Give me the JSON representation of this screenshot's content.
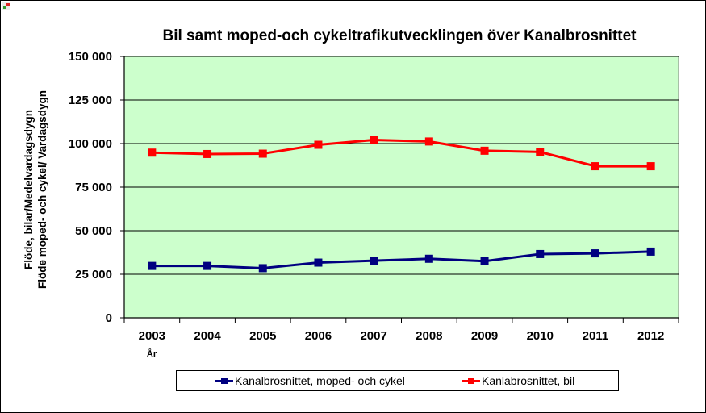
{
  "chart_data": {
    "type": "line",
    "title": "Bil samt moped-och cykeltrafikutvecklingen över Kanalbrosnittet",
    "xlabel": "År",
    "ylabel_lines": [
      "Flöde, bilar/Medelvardagsdygn",
      "Flöde moped- och cykel/ Vardagsdygn"
    ],
    "categories": [
      "2003",
      "2004",
      "2005",
      "2006",
      "2007",
      "2008",
      "2009",
      "2010",
      "2011",
      "2012"
    ],
    "ylim": [
      0,
      150000
    ],
    "yticks": [
      0,
      25000,
      50000,
      75000,
      100000,
      125000,
      150000
    ],
    "ytick_labels": [
      "0",
      "25 000",
      "50 000",
      "75 000",
      "100 000",
      "125 000",
      "150 000"
    ],
    "grid": true,
    "legend_position": "bottom",
    "plot_background": "#ccffcc",
    "series": [
      {
        "name": "Kanalbrosnittet, moped- och cykel",
        "color": "#000080",
        "marker": "square",
        "values": [
          29800,
          29800,
          28500,
          31700,
          32800,
          33900,
          32500,
          36600,
          37000,
          38000
        ]
      },
      {
        "name": "Kanlabrosnittet, bil",
        "color": "#ff0000",
        "marker": "square",
        "values": [
          94800,
          94000,
          94200,
          99300,
          102100,
          101200,
          95900,
          95200,
          87000,
          87000
        ]
      }
    ]
  }
}
